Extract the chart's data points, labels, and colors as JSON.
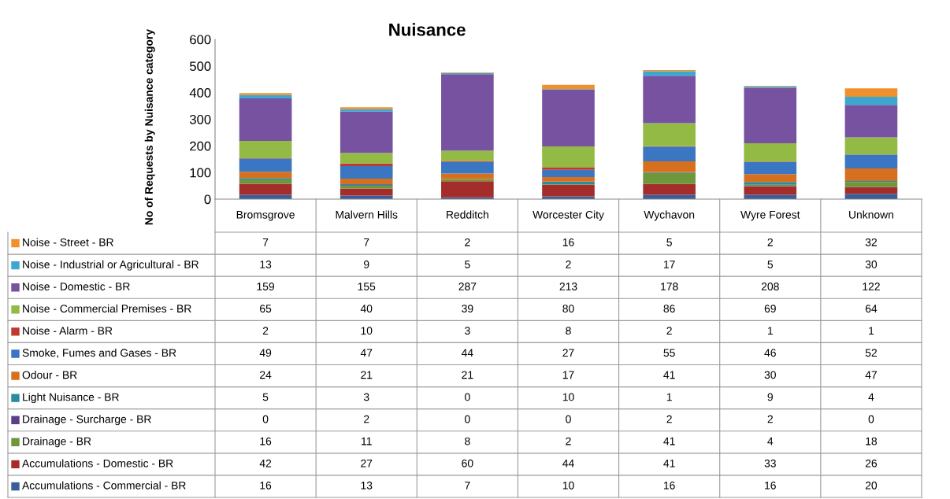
{
  "chart_data": {
    "type": "bar",
    "title": "Nuisance",
    "ylabel": "No of Requests by Nuisance category",
    "categories": [
      "Bromsgrove",
      "Malvern Hills",
      "Redditch",
      "Worcester City",
      "Wychavon",
      "Wyre Forest",
      "Unknown"
    ],
    "stacked": true,
    "data_labels": true,
    "legend": "bottom left",
    "grid": false,
    "ylim": [
      0,
      600
    ],
    "yticks": [
      0,
      100,
      200,
      300,
      400,
      500,
      600
    ],
    "series": [
      {
        "name": "Accumulations - Commercial - BR",
        "color": "#3b5e9a",
        "values": [
          16,
          13,
          7,
          10,
          16,
          16,
          20
        ]
      },
      {
        "name": "Accumulations - Domestic - BR",
        "color": "#a42d2b",
        "values": [
          42,
          27,
          60,
          44,
          41,
          33,
          26
        ]
      },
      {
        "name": "Drainage - BR",
        "color": "#6e963a",
        "values": [
          16,
          11,
          8,
          2,
          41,
          4,
          18
        ]
      },
      {
        "name": "Drainage - Surcharge - BR",
        "color": "#5a3f8a",
        "values": [
          0,
          2,
          0,
          0,
          2,
          2,
          0
        ]
      },
      {
        "name": "Light Nuisance - BR",
        "color": "#2a8aa0",
        "values": [
          5,
          3,
          0,
          10,
          1,
          9,
          4
        ]
      },
      {
        "name": "Odour - BR",
        "color": "#d6701f",
        "values": [
          24,
          21,
          21,
          17,
          41,
          30,
          47
        ]
      },
      {
        "name": "Smoke, Fumes and Gases - BR",
        "color": "#3a76c2",
        "values": [
          49,
          47,
          44,
          27,
          55,
          46,
          52
        ]
      },
      {
        "name": "Noise - Alarm - BR",
        "color": "#c0392e",
        "values": [
          2,
          10,
          3,
          8,
          2,
          1,
          1
        ]
      },
      {
        "name": "Noise - Commercial Premises - BR",
        "color": "#92ba45",
        "values": [
          65,
          40,
          39,
          80,
          86,
          69,
          64
        ]
      },
      {
        "name": "Noise - Domestic - BR",
        "color": "#7652a0",
        "values": [
          159,
          155,
          287,
          213,
          178,
          208,
          122
        ]
      },
      {
        "name": "Noise - Industrial or Agricultural - BR",
        "color": "#3aa8cf",
        "values": [
          13,
          9,
          5,
          2,
          17,
          5,
          30
        ]
      },
      {
        "name": "Noise - Street - BR",
        "color": "#f0902c",
        "values": [
          7,
          7,
          2,
          16,
          5,
          2,
          32
        ]
      }
    ]
  }
}
